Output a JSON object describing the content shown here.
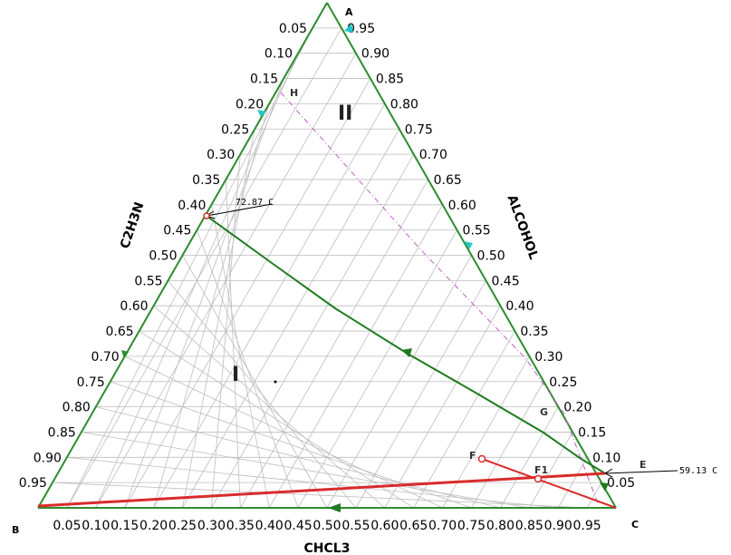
{
  "vertices": {
    "top": "A",
    "left": "B",
    "right": "C"
  },
  "axis_titles": {
    "left": "C2H3N",
    "right": "ALCOHOL",
    "bottom": "CHCL3"
  },
  "left_ticks": [
    "0.05",
    "0.10",
    "0.15",
    "0.20",
    "0.25",
    "0.30",
    "0.35",
    "0.40",
    "0.45",
    "0.50",
    "0.55",
    "0.60",
    "0.65",
    "0.70",
    "0.75",
    "0.80",
    "0.85",
    "0.90",
    "0.95"
  ],
  "right_ticks": [
    "0.95",
    "0.90",
    "0.85",
    "0.80",
    "0.75",
    "0.70",
    "0.65",
    "0.60",
    "0.55",
    "0.50",
    "0.45",
    "0.40",
    "0.35",
    "0.30",
    "0.25",
    "0.20",
    "0.15",
    "0.10",
    "0.05"
  ],
  "bottom_ticks": [
    "0.05",
    "0.10",
    "0.15",
    "0.20",
    "0.25",
    "0.30",
    "0.35",
    "0.40",
    "0.45",
    "0.50",
    "0.55",
    "0.60",
    "0.65",
    "0.70",
    "0.75",
    "0.80",
    "0.85",
    "0.90",
    "0.95"
  ],
  "regions": {
    "one": "I",
    "two": "II"
  },
  "points": {
    "E": "E",
    "F": "F",
    "F1": "F1",
    "G": "G",
    "H": "H"
  },
  "annotations": {
    "azeo_left": "72.87 C",
    "azeo_right": "59.13 C"
  },
  "colors": {
    "border": "#2e8b2e",
    "grid": "#bdbdbd",
    "distillation": "#1f7a1f",
    "arrow_cyan": "#1fc8c8",
    "material_balance": "#d92b2b",
    "boundary": "#c060c8"
  }
}
